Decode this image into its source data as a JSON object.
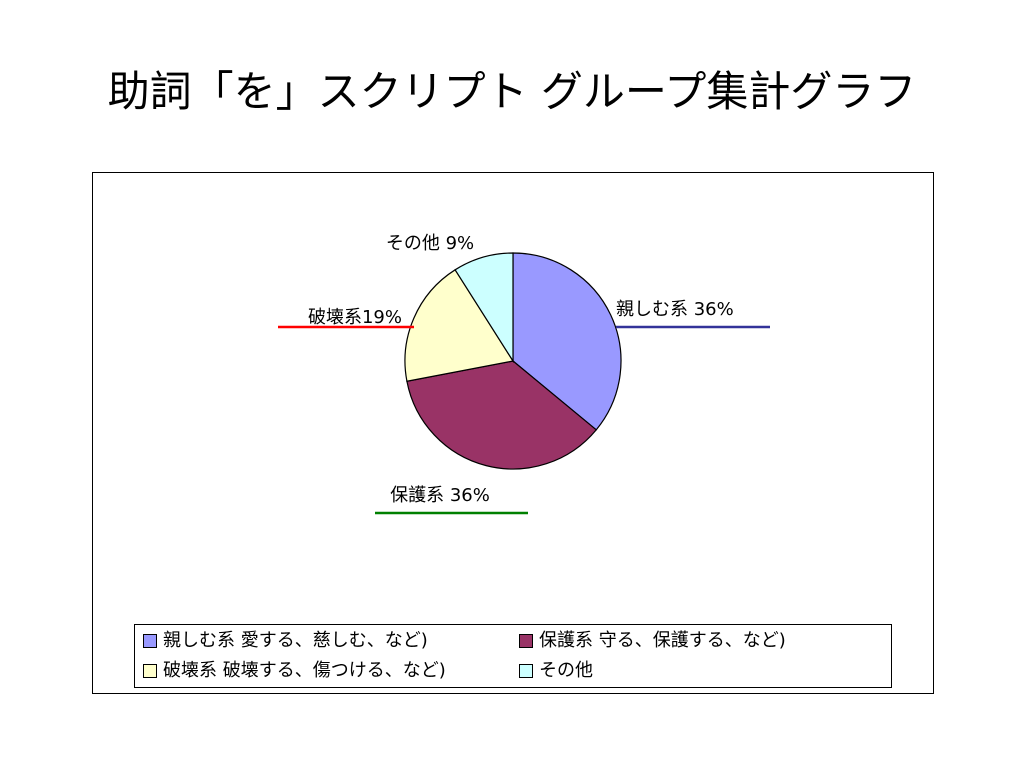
{
  "slide": {
    "title": "助詞「を」スクリプト グループ集計グラフ"
  },
  "chart_data": {
    "type": "pie",
    "title": "",
    "slices": [
      {
        "key": "shitashimu",
        "label": "親しむ系 36%",
        "value": 36,
        "color": "#9999ff",
        "leader_color": "#333399"
      },
      {
        "key": "hogo",
        "label": "保護系 36%",
        "value": 36,
        "color": "#993366",
        "leader_color": "#008000"
      },
      {
        "key": "hakai",
        "label": "破壊系19%",
        "value": 19,
        "color": "#ffffcc",
        "leader_color": "#ff0000"
      },
      {
        "key": "sonota",
        "label": "その他 9%",
        "value": 9,
        "color": "#ccffff",
        "leader_color": null
      }
    ],
    "legend": {
      "placement": "bottom",
      "entries": [
        "親しむ系  愛する、慈しむ、など)",
        "保護系  守る、保護する、など)",
        "破壊系  破壊する、傷つける、など)",
        "その他"
      ]
    }
  }
}
